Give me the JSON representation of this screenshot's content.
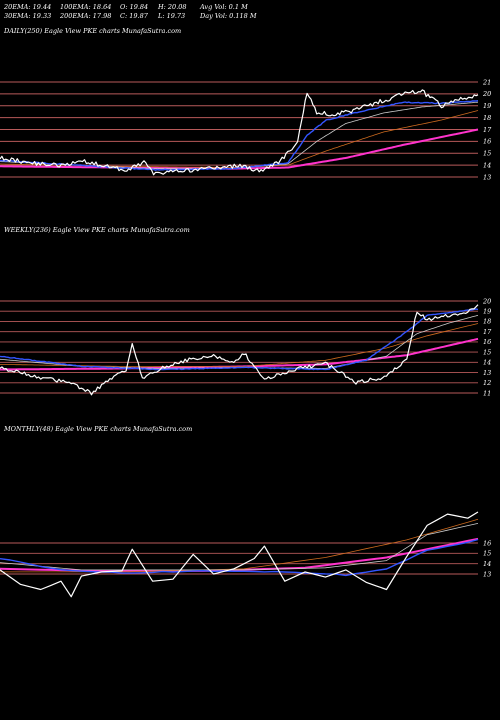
{
  "header": {
    "row1": {
      "ema20": "20EMA: 19.44",
      "ema100": "100EMA: 18.64",
      "open": "O: 19.84",
      "high": "H: 20.08",
      "avgvol": "Avg Vol: 0.1  M"
    },
    "row2": {
      "ema30": "30EMA: 19.33",
      "ema200": "200EMA: 17.98",
      "close": "C: 19.87",
      "low": "L: 19.73",
      "dayvol": "Day Vol: 0.118  M"
    }
  },
  "colors": {
    "background": "#000000",
    "price": "#ffffff",
    "ema_fast": "#3355ff",
    "ema_magenta": "#ff33cc",
    "ema_orange": "#cc6a1e",
    "ema_white": "#cccccc",
    "gridline": "#b85a5a"
  },
  "chart_data": [
    {
      "title": "DAILY(250) Eagle   View  PKE charts MunafaSutra.com",
      "type": "line",
      "y_ticks": [
        "21",
        "20",
        "19",
        "18",
        "17",
        "16",
        "15",
        "14",
        "13"
      ],
      "ylim": [
        12.6,
        21.6
      ],
      "grid": true,
      "n_points": 250,
      "series": [
        {
          "role": "price",
          "color": "#ffffff",
          "anchors": [
            [
              0,
              14.6
            ],
            [
              15,
              14.2
            ],
            [
              30,
              14.0
            ],
            [
              45,
              14.3
            ],
            [
              55,
              13.9
            ],
            [
              65,
              13.6
            ],
            [
              75,
              14.2
            ],
            [
              80,
              13.3
            ],
            [
              90,
              13.5
            ],
            [
              100,
              13.6
            ],
            [
              115,
              13.8
            ],
            [
              125,
              14.0
            ],
            [
              135,
              13.5
            ],
            [
              145,
              14.2
            ],
            [
              150,
              15.0
            ],
            [
              155,
              16.0
            ],
            [
              160,
              20.2
            ],
            [
              165,
              18.4
            ],
            [
              175,
              18.3
            ],
            [
              185,
              18.6
            ],
            [
              195,
              19.2
            ],
            [
              205,
              19.7
            ],
            [
              210,
              20.1
            ],
            [
              220,
              20.2
            ],
            [
              225,
              19.6
            ],
            [
              230,
              19.0
            ],
            [
              240,
              19.6
            ],
            [
              249,
              19.9
            ]
          ]
        },
        {
          "role": "ema_fast",
          "color": "#3355ff",
          "anchors": [
            [
              0,
              14.4
            ],
            [
              40,
              14.0
            ],
            [
              80,
              13.6
            ],
            [
              120,
              13.7
            ],
            [
              150,
              14.2
            ],
            [
              160,
              16.5
            ],
            [
              170,
              17.8
            ],
            [
              190,
              18.6
            ],
            [
              210,
              19.3
            ],
            [
              230,
              19.2
            ],
            [
              249,
              19.4
            ]
          ]
        },
        {
          "role": "ema_white",
          "color": "#cccccc",
          "anchors": [
            [
              0,
              14.3
            ],
            [
              40,
              14.0
            ],
            [
              80,
              13.7
            ],
            [
              120,
              13.7
            ],
            [
              150,
              14.1
            ],
            [
              165,
              16.0
            ],
            [
              180,
              17.5
            ],
            [
              200,
              18.4
            ],
            [
              220,
              18.9
            ],
            [
              249,
              19.3
            ]
          ]
        },
        {
          "role": "ema_orange",
          "color": "#cc6a1e",
          "anchors": [
            [
              0,
              14.1
            ],
            [
              60,
              13.9
            ],
            [
              120,
              13.8
            ],
            [
              150,
              14.0
            ],
            [
              170,
              15.2
            ],
            [
              200,
              16.8
            ],
            [
              230,
              17.8
            ],
            [
              249,
              18.6
            ]
          ]
        },
        {
          "role": "ema_magenta",
          "color": "#ff33cc",
          "anchors": [
            [
              0,
              13.9
            ],
            [
              60,
              13.8
            ],
            [
              120,
              13.7
            ],
            [
              150,
              13.8
            ],
            [
              180,
              14.6
            ],
            [
              210,
              15.7
            ],
            [
              249,
              17.0
            ]
          ]
        }
      ]
    },
    {
      "title": "WEEKLY(236) Eagle   View  PKE charts MunafaSutra.com",
      "type": "line",
      "y_ticks": [
        "20",
        "19",
        "18",
        "17",
        "16",
        "15",
        "14",
        "13",
        "12",
        "11"
      ],
      "ylim": [
        10.3,
        20.6
      ],
      "grid": true,
      "n_points": 236,
      "series": [
        {
          "role": "price",
          "color": "#ffffff",
          "anchors": [
            [
              0,
              13.5
            ],
            [
              10,
              13.0
            ],
            [
              20,
              12.5
            ],
            [
              35,
              12.0
            ],
            [
              45,
              11.0
            ],
            [
              55,
              12.4
            ],
            [
              62,
              13.3
            ],
            [
              65,
              15.8
            ],
            [
              70,
              12.4
            ],
            [
              80,
              13.5
            ],
            [
              95,
              14.4
            ],
            [
              105,
              14.6
            ],
            [
              115,
              14.1
            ],
            [
              120,
              14.9
            ],
            [
              130,
              12.4
            ],
            [
              145,
              13.3
            ],
            [
              160,
              13.9
            ],
            [
              175,
              12.0
            ],
            [
              190,
              12.6
            ],
            [
              200,
              14.3
            ],
            [
              205,
              19.0
            ],
            [
              210,
              18.2
            ],
            [
              220,
              18.6
            ],
            [
              228,
              18.8
            ],
            [
              235,
              19.6
            ]
          ]
        },
        {
          "role": "ema_fast",
          "color": "#3355ff",
          "anchors": [
            [
              0,
              14.6
            ],
            [
              40,
              13.6
            ],
            [
              80,
              13.3
            ],
            [
              120,
              13.5
            ],
            [
              160,
              13.3
            ],
            [
              180,
              14.2
            ],
            [
              200,
              17.0
            ],
            [
              210,
              18.6
            ],
            [
              235,
              19.2
            ]
          ]
        },
        {
          "role": "ema_white",
          "color": "#cccccc",
          "anchors": [
            [
              0,
              14.3
            ],
            [
              40,
              13.6
            ],
            [
              80,
              13.4
            ],
            [
              120,
              13.5
            ],
            [
              160,
              13.4
            ],
            [
              190,
              14.6
            ],
            [
              205,
              16.8
            ],
            [
              220,
              17.8
            ],
            [
              235,
              18.6
            ]
          ]
        },
        {
          "role": "ema_orange",
          "color": "#cc6a1e",
          "anchors": [
            [
              0,
              13.8
            ],
            [
              60,
              13.6
            ],
            [
              120,
              13.6
            ],
            [
              160,
              14.2
            ],
            [
              190,
              15.4
            ],
            [
              210,
              16.6
            ],
            [
              235,
              17.8
            ]
          ]
        },
        {
          "role": "ema_magenta",
          "color": "#ff33cc",
          "anchors": [
            [
              0,
              13.3
            ],
            [
              60,
              13.4
            ],
            [
              120,
              13.6
            ],
            [
              160,
              13.8
            ],
            [
              200,
              14.7
            ],
            [
              235,
              16.3
            ]
          ]
        }
      ]
    },
    {
      "title": "MONTHLY(48) Eagle   View  PKE charts MunafaSutra.com",
      "type": "line",
      "y_ticks": [
        "16",
        "15",
        "14",
        "13"
      ],
      "ylim": [
        9.5,
        20.2
      ],
      "grid": true,
      "n_points": 48,
      "series": [
        {
          "role": "price",
          "color": "#ffffff",
          "anchors": [
            [
              0,
              13.4
            ],
            [
              2,
              12.0
            ],
            [
              4,
              11.5
            ],
            [
              6,
              12.3
            ],
            [
              7,
              10.8
            ],
            [
              8,
              12.8
            ],
            [
              10,
              13.2
            ],
            [
              12,
              13.3
            ],
            [
              13,
              15.4
            ],
            [
              15,
              12.3
            ],
            [
              17,
              12.5
            ],
            [
              19,
              14.9
            ],
            [
              21,
              13.0
            ],
            [
              23,
              13.5
            ],
            [
              25,
              14.5
            ],
            [
              26,
              15.7
            ],
            [
              28,
              12.3
            ],
            [
              30,
              13.2
            ],
            [
              32,
              12.7
            ],
            [
              34,
              13.4
            ],
            [
              36,
              12.2
            ],
            [
              38,
              11.5
            ],
            [
              40,
              14.7
            ],
            [
              42,
              17.7
            ],
            [
              44,
              18.8
            ],
            [
              46,
              18.4
            ],
            [
              47,
              19.0
            ]
          ]
        },
        {
          "role": "ema_fast",
          "color": "#3355ff",
          "anchors": [
            [
              0,
              14.5
            ],
            [
              6,
              13.4
            ],
            [
              12,
              13.1
            ],
            [
              20,
              13.3
            ],
            [
              28,
              13.2
            ],
            [
              34,
              12.9
            ],
            [
              38,
              13.5
            ],
            [
              42,
              15.3
            ],
            [
              47,
              16.3
            ]
          ]
        },
        {
          "role": "ema_white",
          "color": "#cccccc",
          "anchors": [
            [
              0,
              14.1
            ],
            [
              8,
              13.4
            ],
            [
              16,
              13.4
            ],
            [
              24,
              13.4
            ],
            [
              32,
              13.6
            ],
            [
              38,
              14.3
            ],
            [
              42,
              16.8
            ],
            [
              47,
              17.9
            ]
          ]
        },
        {
          "role": "ema_orange",
          "color": "#cc6a1e",
          "anchors": [
            [
              0,
              13.2
            ],
            [
              12,
              13.2
            ],
            [
              24,
              13.5
            ],
            [
              32,
              14.6
            ],
            [
              40,
              16.3
            ],
            [
              47,
              18.3
            ]
          ]
        },
        {
          "role": "ema_magenta",
          "color": "#ff33cc",
          "anchors": [
            [
              0,
              13.5
            ],
            [
              10,
              13.3
            ],
            [
              20,
              13.3
            ],
            [
              30,
              13.6
            ],
            [
              38,
              14.6
            ],
            [
              47,
              16.4
            ]
          ]
        }
      ]
    }
  ]
}
